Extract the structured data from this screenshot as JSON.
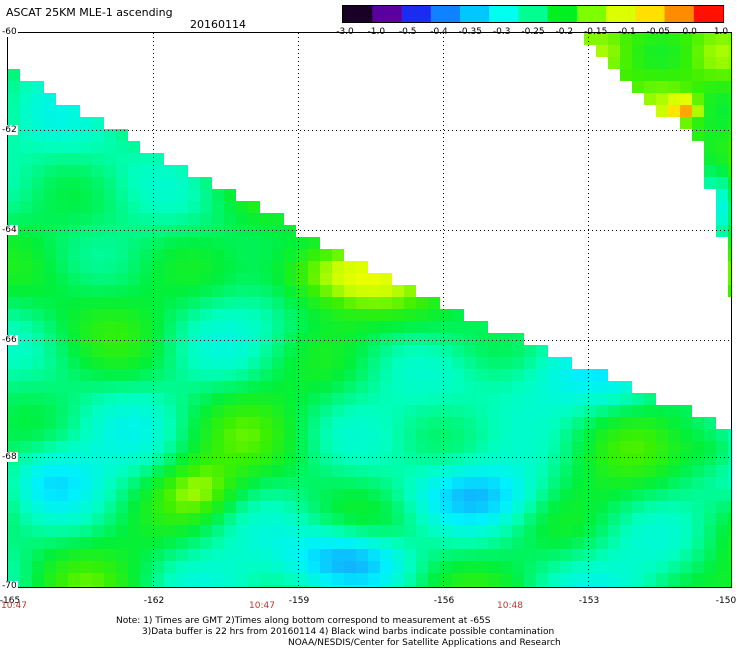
{
  "header": {
    "title": "ASCAT 25KM MLE-1 ascending",
    "date": "20160114"
  },
  "colorbar": {
    "labels": [
      "-3.0",
      "-1.0",
      "-0.5",
      "-0.4",
      "-0.35",
      "-0.3",
      "-0.25",
      "-0.2",
      "-0.15",
      "-0.1",
      "-0.05",
      "0.0",
      "1.0"
    ],
    "colors": [
      "#1a0026",
      "#5a00a0",
      "#1a2cf0",
      "#0f82ff",
      "#00c8ff",
      "#00ffee",
      "#00ff90",
      "#00f020",
      "#7cff00",
      "#dcff00",
      "#ffe000",
      "#ff8c00",
      "#ff1000"
    ]
  },
  "axes": {
    "lat_labels": [
      "-60",
      "-62",
      "-64",
      "-66",
      "-68",
      "-70"
    ],
    "lon_labels": [
      "-165",
      "-162",
      "-159",
      "-156",
      "-153",
      "-150"
    ],
    "time_labels": [
      "10:47",
      "10:47",
      "10:48"
    ]
  },
  "notes": {
    "line1": "Note: 1) Times are GMT 2)Times along bottom correspond to measurement at -65S",
    "line2": "3)Data buffer is 22 hrs from 20160114 4) Black wind barbs indicate possible contamination",
    "line3": "NOAA/NESDIS/Center for Satellite Applications and Research"
  }
}
